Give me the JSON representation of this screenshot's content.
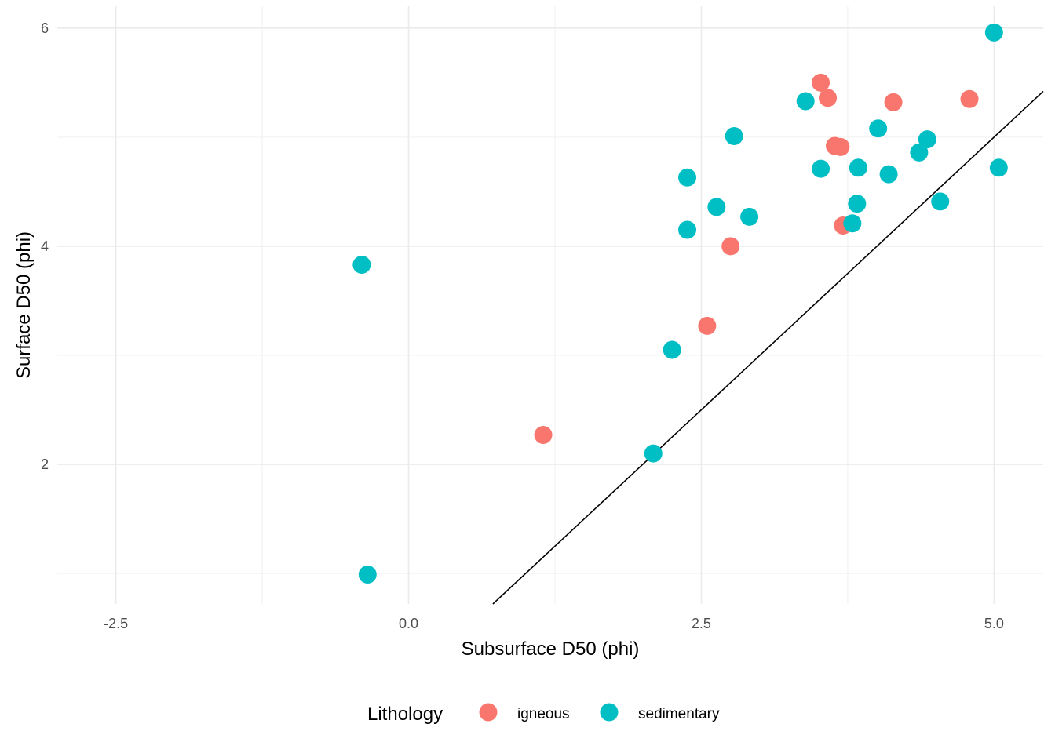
{
  "chart_data": {
    "type": "scatter",
    "xlabel": "Subsurface D50 (phi)",
    "ylabel": "Surface D50 (phi)",
    "xlim": [
      -3.0,
      5.42
    ],
    "ylim": [
      0.72,
      6.2
    ],
    "x_ticks": [
      -2.5,
      0.0,
      2.5,
      5.0
    ],
    "x_tick_labels": [
      "-2.5",
      "0.0",
      "2.5",
      "5.0"
    ],
    "y_ticks": [
      2,
      4,
      6
    ],
    "y_tick_labels": [
      "2",
      "4",
      "6"
    ],
    "grid": true,
    "legend": {
      "title": "Lithology",
      "position": "bottom"
    },
    "reference_line": {
      "type": "identity",
      "description": "y = x"
    },
    "series": [
      {
        "name": "igneous",
        "color": "#F8766D",
        "points": [
          {
            "x": 1.15,
            "y": 2.27
          },
          {
            "x": 2.55,
            "y": 3.27
          },
          {
            "x": 2.75,
            "y": 4.0
          },
          {
            "x": 3.52,
            "y": 5.5
          },
          {
            "x": 3.58,
            "y": 5.36
          },
          {
            "x": 3.64,
            "y": 4.92
          },
          {
            "x": 3.69,
            "y": 4.91
          },
          {
            "x": 3.71,
            "y": 4.19
          },
          {
            "x": 4.14,
            "y": 5.32
          },
          {
            "x": 4.79,
            "y": 5.35
          }
        ]
      },
      {
        "name": "sedimentary",
        "color": "#00BFC4",
        "points": [
          {
            "x": -0.4,
            "y": 3.83
          },
          {
            "x": -0.35,
            "y": 0.99
          },
          {
            "x": 2.09,
            "y": 2.1
          },
          {
            "x": 2.25,
            "y": 3.05
          },
          {
            "x": 2.38,
            "y": 4.63
          },
          {
            "x": 2.38,
            "y": 4.15
          },
          {
            "x": 2.63,
            "y": 4.36
          },
          {
            "x": 2.78,
            "y": 5.01
          },
          {
            "x": 2.91,
            "y": 4.27
          },
          {
            "x": 3.39,
            "y": 5.33
          },
          {
            "x": 3.52,
            "y": 4.71
          },
          {
            "x": 3.79,
            "y": 4.21
          },
          {
            "x": 3.83,
            "y": 4.39
          },
          {
            "x": 3.84,
            "y": 4.72
          },
          {
            "x": 4.01,
            "y": 5.08
          },
          {
            "x": 4.1,
            "y": 4.66
          },
          {
            "x": 4.36,
            "y": 4.86
          },
          {
            "x": 4.43,
            "y": 4.98
          },
          {
            "x": 4.54,
            "y": 4.41
          },
          {
            "x": 5.0,
            "y": 5.96
          },
          {
            "x": 5.04,
            "y": 4.72
          }
        ]
      }
    ]
  }
}
